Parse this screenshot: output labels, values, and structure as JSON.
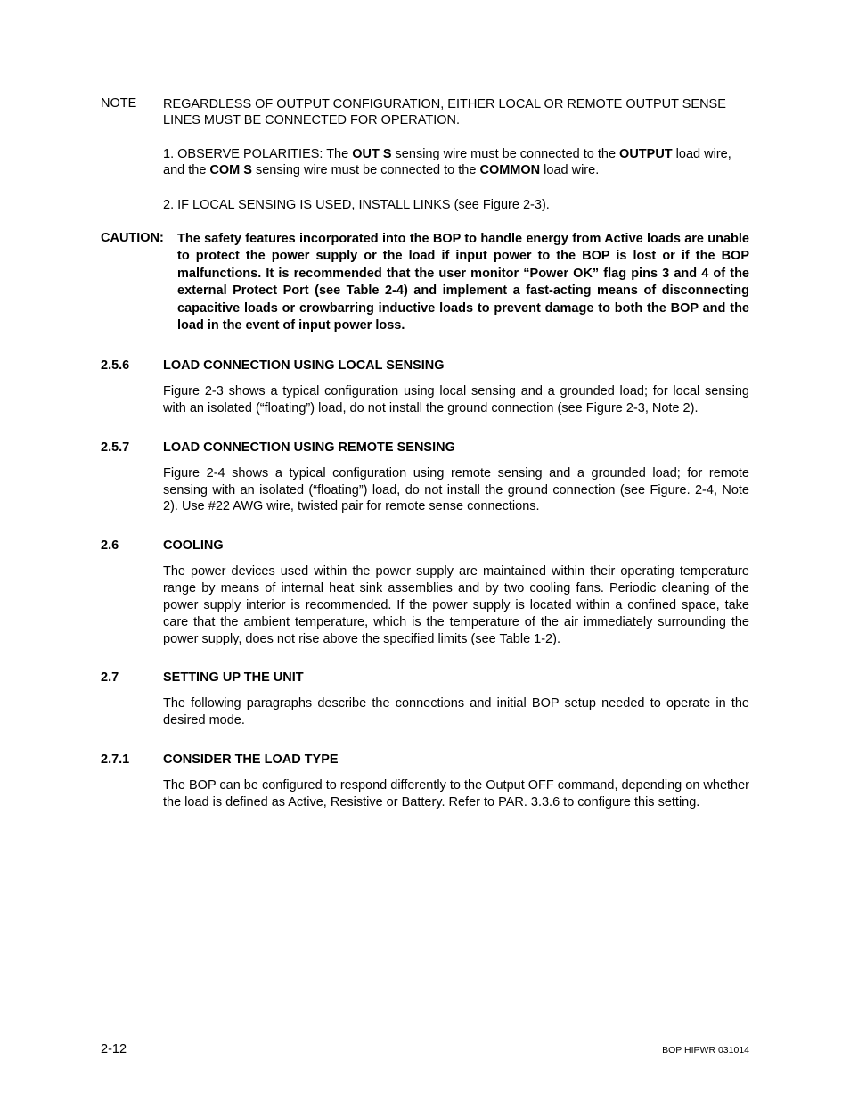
{
  "note": {
    "label": "NOTE",
    "line1": "REGARDLESS OF OUTPUT CONFIGURATION, EITHER LOCAL OR REMOTE OUTPUT SENSE LINES MUST BE CONNECTED FOR OPERATION.",
    "p1_a": "1. OBSERVE POLARITIES: The ",
    "p1_b": "OUT S",
    "p1_c": " sensing wire must be connected to the ",
    "p1_d": "OUTPUT",
    "p1_e": " load wire, and the ",
    "p1_f": "COM S",
    "p1_g": " sensing wire must be connected to the ",
    "p1_h": "COMMON",
    "p1_i": " load wire.",
    "p2": "2. IF LOCAL SENSING IS USED, INSTALL LINKS (see Figure 2-3)."
  },
  "caution": {
    "label": "CAUTION:",
    "text": "The safety features incorporated into the BOP to handle energy from Active loads are unable to protect the power supply or the load if input power to the BOP is lost or if the BOP malfunctions. It is recommended that the user monitor “Power OK” flag pins 3 and 4 of the external Protect Port (see Table 2-4) and implement a fast-acting means of disconnecting capacitive loads or crowbarring inductive loads to prevent damage to both the BOP and the load in the event of input power loss."
  },
  "s256": {
    "num": "2.5.6",
    "title": "LOAD CONNECTION USING LOCAL SENSING",
    "body": "Figure 2-3 shows a typical configuration using local sensing and a grounded load; for local sensing with an isolated (“floating”) load, do not install the ground connection (see Figure 2-3, Note 2)."
  },
  "s257": {
    "num": "2.5.7",
    "title": "LOAD CONNECTION USING REMOTE SENSING",
    "body": "Figure 2-4 shows a typical configuration using remote sensing and a grounded load; for remote sensing with an isolated (“floating”) load, do not install the ground connection (see Figure. 2-4, Note 2). Use #22 AWG wire, twisted pair for remote sense connections."
  },
  "s26": {
    "num": "2.6",
    "title": "COOLING",
    "body": "The power devices used within the power supply are maintained within their operating temperature range by means of internal heat sink assemblies and by two cooling fans. Periodic cleaning of the power supply interior is recommended. If the power supply is located within a confined space, take care that the ambient temperature, which is the temperature of the air immediately surrounding the power supply, does not rise above the specified limits (see Table 1-2)."
  },
  "s27": {
    "num": "2.7",
    "title": "SETTING UP THE UNIT",
    "body": "The following paragraphs describe the connections and initial BOP setup needed to operate in the desired mode."
  },
  "s271": {
    "num": "2.7.1",
    "title": "CONSIDER THE LOAD TYPE",
    "body": "The BOP can be configured to respond differently to the Output OFF command, depending on whether the load is defined as Active, Resistive or Battery. Refer to PAR. 3.3.6 to configure this setting."
  },
  "footer": {
    "left": "2-12",
    "right": "BOP HIPWR 031014"
  }
}
